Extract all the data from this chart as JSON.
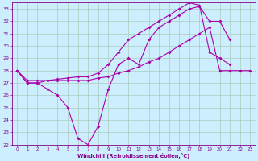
{
  "background_color": "#cceeff",
  "grid_color": "#aaccbb",
  "line_color": "#aa00aa",
  "marker": "D",
  "marker_size": 2,
  "xlabel": "Windchill (Refroidissement éolien,°C)",
  "xlabel_color": "#880088",
  "tick_color": "#880088",
  "ylim": [
    22,
    33.5
  ],
  "xlim": [
    -0.5,
    23.5
  ],
  "yticks": [
    22,
    23,
    24,
    25,
    26,
    27,
    28,
    29,
    30,
    31,
    32,
    33
  ],
  "xticks": [
    0,
    1,
    2,
    3,
    4,
    5,
    6,
    7,
    8,
    9,
    10,
    11,
    12,
    13,
    14,
    15,
    16,
    17,
    18,
    19,
    20,
    21,
    22,
    23
  ],
  "line1_x": [
    0,
    1,
    2,
    3,
    4,
    5,
    6,
    7,
    8,
    9,
    10,
    11,
    12,
    13,
    14,
    15,
    16,
    17,
    18,
    19,
    20,
    21
  ],
  "line1_y": [
    28.0,
    27.0,
    27.0,
    26.5,
    26.0,
    25.0,
    22.5,
    22.0,
    23.5,
    26.5,
    28.5,
    29.0,
    28.5,
    30.5,
    31.5,
    32.0,
    32.5,
    33.0,
    33.2,
    32.0,
    32.0,
    30.5
  ],
  "line2_x": [
    0,
    1,
    2,
    3,
    4,
    5,
    6,
    7,
    8,
    9,
    10,
    11,
    12,
    13,
    14,
    15,
    16,
    17,
    18,
    19,
    20,
    21,
    22,
    23
  ],
  "line2_y": [
    28.0,
    27.2,
    27.2,
    27.2,
    27.2,
    27.2,
    27.2,
    27.2,
    27.4,
    27.5,
    27.8,
    28.0,
    28.3,
    28.7,
    29.0,
    29.5,
    30.0,
    30.5,
    31.0,
    31.5,
    28.0,
    28.0,
    28.0,
    28.0
  ],
  "line3_x": [
    0,
    1,
    2,
    3,
    4,
    5,
    6,
    7,
    8,
    9,
    10,
    11,
    12,
    13,
    14,
    15,
    16,
    17,
    18,
    19,
    20,
    21
  ],
  "line3_y": [
    28.0,
    27.0,
    27.0,
    27.2,
    27.3,
    27.4,
    27.5,
    27.5,
    27.8,
    28.5,
    29.5,
    30.5,
    31.0,
    31.5,
    32.0,
    32.5,
    33.0,
    33.5,
    33.3,
    29.5,
    29.0,
    28.5
  ]
}
